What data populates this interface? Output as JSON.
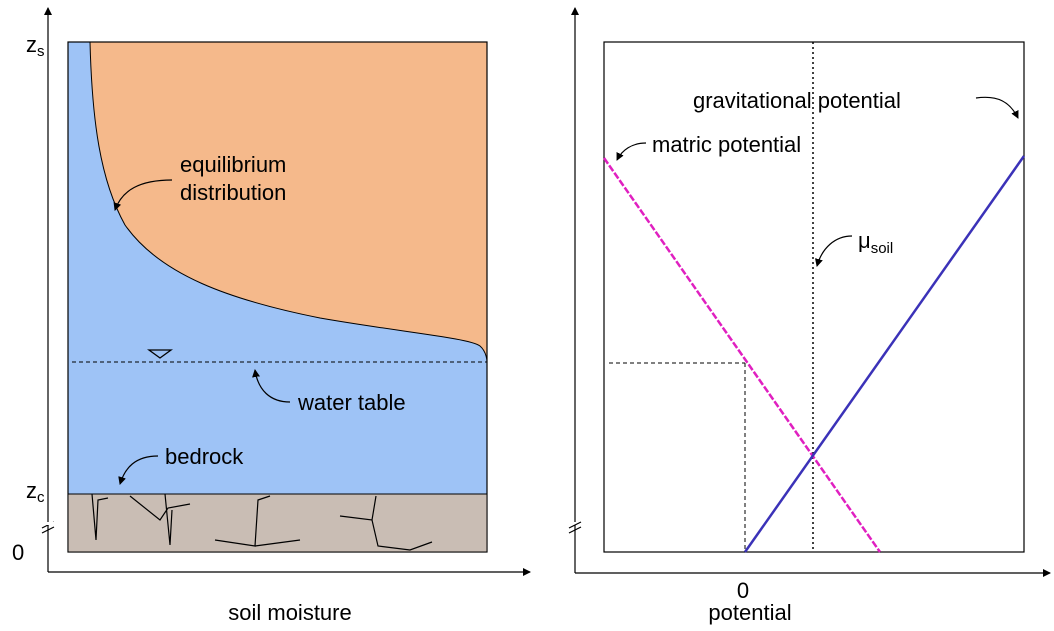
{
  "left_panel": {
    "y_labels": [
      {
        "main": "z",
        "sub": "s"
      },
      {
        "main": "z",
        "sub": "c"
      },
      {
        "main": "0"
      }
    ],
    "annotations": {
      "equilibrium_distribution": [
        "equilibrium",
        "distribution"
      ],
      "water_table": "water table",
      "bedrock": "bedrock"
    },
    "x_axis_label": "soil moisture"
  },
  "right_panel": {
    "annotations": {
      "gravitational_potential": "gravitational potential",
      "matric_potential": "matric potential",
      "mu_soil": {
        "main": "μ",
        "sub": "soil"
      }
    },
    "x_tick": "0",
    "x_axis_label": "potential"
  }
}
